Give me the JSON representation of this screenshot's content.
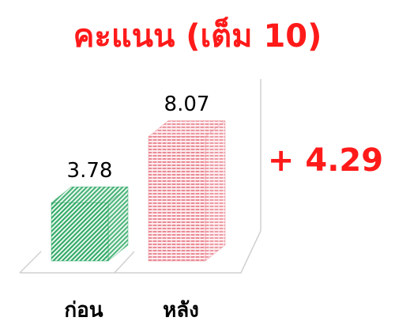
{
  "chart_data": {
    "type": "bar3d",
    "title": "คะแนน (เต็ม 10)",
    "categories": [
      "ก่อน",
      "หลัง"
    ],
    "values": [
      3.78,
      8.07
    ],
    "colors": [
      "#2fa865",
      "#e98a95"
    ],
    "annotation": "+ 4.29",
    "ylim": [
      0,
      10
    ]
  }
}
